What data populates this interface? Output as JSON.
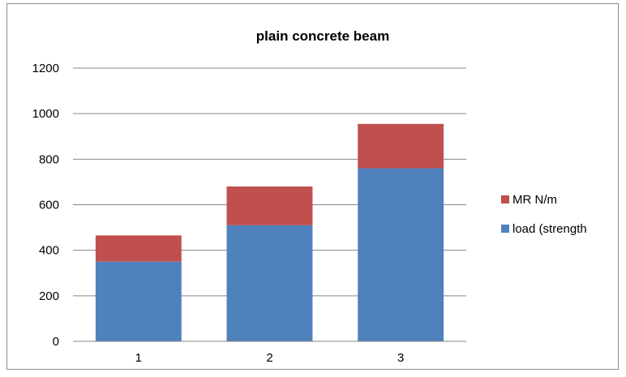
{
  "chart_data": {
    "type": "bar",
    "stacked": true,
    "title": "plain concrete beam",
    "xlabel": "",
    "ylabel": "",
    "categories": [
      "1",
      "2",
      "3"
    ],
    "series": [
      {
        "name": "load (strength",
        "color": "#4F81BD",
        "values": [
          350,
          510,
          760
        ]
      },
      {
        "name": "MR N/m",
        "color": "#C0504D",
        "values": [
          115,
          170,
          195
        ]
      }
    ],
    "ylim": [
      0,
      1200
    ],
    "yticks": [
      0,
      200,
      400,
      600,
      800,
      1000,
      1200
    ],
    "grid": true,
    "legend_position": "right"
  }
}
